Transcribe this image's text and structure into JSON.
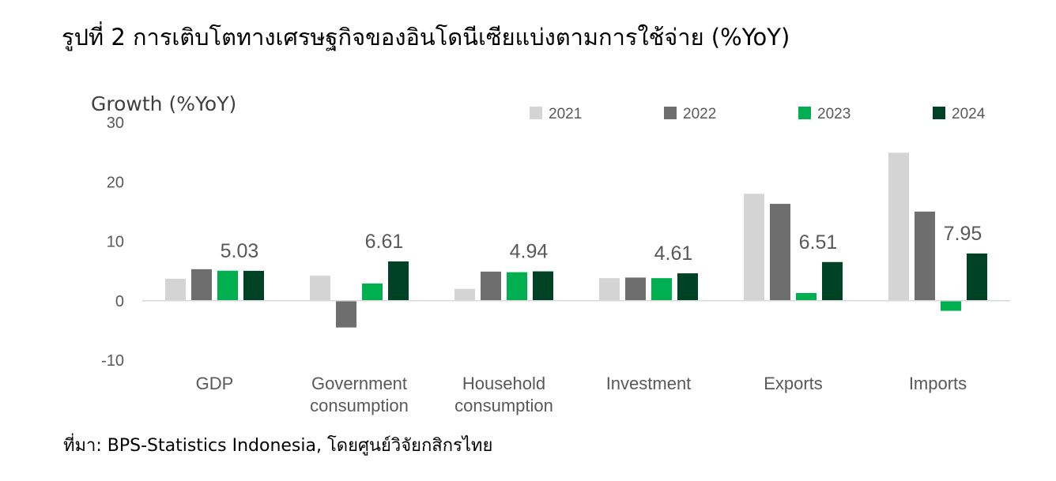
{
  "title": "รูปที่ 2 การเติบโตทางเศรษฐกิจของอินโดนีเซียแบ่งตามการใช้จ่าย (%YoY)",
  "source": "ที่มา: BPS-Statistics Indonesia, โดยศูนย์วิจัยกสิกรไทย",
  "chart_data": {
    "type": "bar",
    "ylabel": "Growth (%YoY)",
    "ylim": [
      -10,
      30
    ],
    "yticks": [
      "-10",
      "0",
      "10",
      "20",
      "30"
    ],
    "grid": false,
    "legend_position": "top-right",
    "categories": [
      [
        "GDP"
      ],
      [
        "Government",
        "consumption"
      ],
      [
        "Household",
        "consumption"
      ],
      [
        "Investment"
      ],
      [
        "Exports"
      ],
      [
        "Imports"
      ]
    ],
    "series": [
      {
        "name": "2021",
        "color": "#d4d4d4",
        "values": [
          3.7,
          4.2,
          2.0,
          3.8,
          18.0,
          24.9
        ]
      },
      {
        "name": "2022",
        "color": "#6e6e6e",
        "values": [
          5.3,
          -4.5,
          4.9,
          3.9,
          16.3,
          15.0
        ]
      },
      {
        "name": "2023",
        "color": "#00b050",
        "values": [
          5.05,
          2.9,
          4.8,
          3.8,
          1.3,
          -1.7
        ]
      },
      {
        "name": "2024",
        "color": "#004225",
        "values": [
          5.03,
          6.61,
          4.94,
          4.61,
          6.51,
          7.95
        ]
      }
    ],
    "data_labels": [
      "5.03",
      "6.61",
      "4.94",
      "4.61",
      "6.51",
      "7.95"
    ]
  }
}
